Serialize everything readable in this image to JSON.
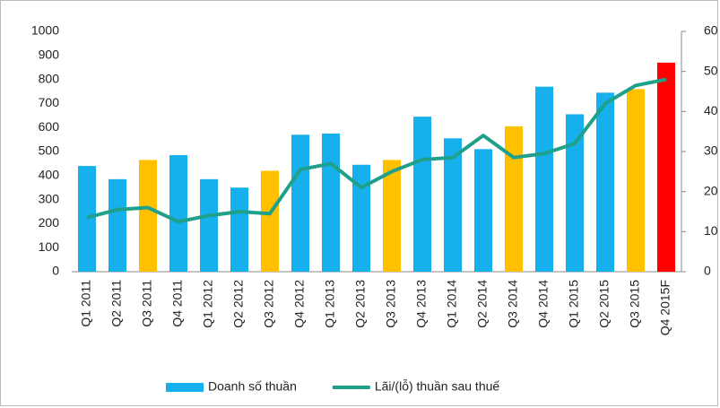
{
  "chart_data": {
    "type": "bar",
    "categories": [
      "Q1 2011",
      "Q2 2011",
      "Q3 2011",
      "Q4 2011",
      "Q1 2012",
      "Q2 2012",
      "Q3 2012",
      "Q4 2012",
      "Q1 2013",
      "Q2 2013",
      "Q3 2013",
      "Q4 2013",
      "Q1 2014",
      "Q2 2014",
      "Q3 2014",
      "Q4 2014",
      "Q1 2015",
      "Q2 2015",
      "Q3 2015",
      "Q4 2015F"
    ],
    "series": [
      {
        "name": "Doanh số thuần",
        "type": "bar",
        "color": "#16b0ec",
        "colors": [
          "#16b0ec",
          "#16b0ec",
          "#ffc000",
          "#16b0ec",
          "#16b0ec",
          "#16b0ec",
          "#ffc000",
          "#16b0ec",
          "#16b0ec",
          "#16b0ec",
          "#ffc000",
          "#16b0ec",
          "#16b0ec",
          "#16b0ec",
          "#ffc000",
          "#16b0ec",
          "#16b0ec",
          "#16b0ec",
          "#ffc000",
          "#ff0000"
        ],
        "values": [
          440,
          385,
          465,
          485,
          385,
          350,
          420,
          570,
          575,
          445,
          465,
          645,
          555,
          510,
          605,
          770,
          655,
          745,
          760,
          870
        ]
      },
      {
        "name": "Lãi/(lỗ) thuần sau thuế",
        "type": "line",
        "axis": "y2",
        "color": "#1ea08a",
        "values": [
          13.5,
          15.5,
          16,
          12.5,
          14,
          15,
          14.5,
          25.5,
          27,
          21,
          25,
          28,
          28.5,
          34,
          28.5,
          29.5,
          32,
          42,
          46.5,
          48
        ]
      }
    ],
    "ylim": [
      0,
      1000
    ],
    "yticks": [
      0,
      100,
      200,
      300,
      400,
      500,
      600,
      700,
      800,
      900,
      1000
    ],
    "y2lim": [
      0,
      60
    ],
    "y2ticks": [
      0,
      10,
      20,
      30,
      40,
      50,
      60
    ],
    "legend": "bottom"
  }
}
